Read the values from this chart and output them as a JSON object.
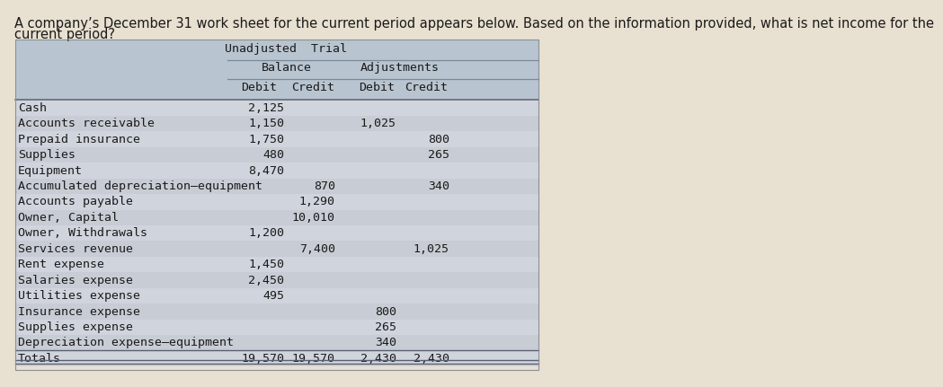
{
  "title_line1": "A company’s December 31 work sheet for the current period appears below. Based on the information provided, what is net income for the",
  "title_line2": "current period?",
  "rows": [
    {
      "label": "Cash",
      "utb_d": "2,125",
      "utb_c": "",
      "adj_d": "",
      "adj_c": ""
    },
    {
      "label": "Accounts receivable",
      "utb_d": "1,150",
      "utb_c": "",
      "adj_d": "1,025",
      "adj_c": ""
    },
    {
      "label": "Prepaid insurance",
      "utb_d": "1,750",
      "utb_c": "",
      "adj_d": "",
      "adj_c": "800"
    },
    {
      "label": "Supplies",
      "utb_d": "480",
      "utb_c": "",
      "adj_d": "",
      "adj_c": "265"
    },
    {
      "label": "Equipment",
      "utb_d": "8,470",
      "utb_c": "",
      "adj_d": "",
      "adj_c": ""
    },
    {
      "label": "Accumulated depreciation–equipment",
      "utb_d": "",
      "utb_c": "870",
      "adj_d": "",
      "adj_c": "340"
    },
    {
      "label": "Accounts payable",
      "utb_d": "",
      "utb_c": "1,290",
      "adj_d": "",
      "adj_c": ""
    },
    {
      "label": "Owner, Capital",
      "utb_d": "",
      "utb_c": "10,010",
      "adj_d": "",
      "adj_c": ""
    },
    {
      "label": "Owner, Withdrawals",
      "utb_d": "1,200",
      "utb_c": "",
      "adj_d": "",
      "adj_c": ""
    },
    {
      "label": "Services revenue",
      "utb_d": "",
      "utb_c": "7,400",
      "adj_d": "",
      "adj_c": "1,025"
    },
    {
      "label": "Rent expense",
      "utb_d": "1,450",
      "utb_c": "",
      "adj_d": "",
      "adj_c": ""
    },
    {
      "label": "Salaries expense",
      "utb_d": "2,450",
      "utb_c": "",
      "adj_d": "",
      "adj_c": ""
    },
    {
      "label": "Utilities expense",
      "utb_d": "495",
      "utb_c": "",
      "adj_d": "",
      "adj_c": ""
    },
    {
      "label": "Insurance expense",
      "utb_d": "",
      "utb_c": "",
      "adj_d": "800",
      "adj_c": ""
    },
    {
      "label": "Supplies expense",
      "utb_d": "",
      "utb_c": "",
      "adj_d": "265",
      "adj_c": ""
    },
    {
      "label": "Depreciation expense–equipment",
      "utb_d": "",
      "utb_c": "",
      "adj_d": "340",
      "adj_c": ""
    },
    {
      "label": "Totals",
      "utb_d": "19,570",
      "utb_c": "19,570",
      "adj_d": "2,430",
      "adj_c": "2,430"
    }
  ],
  "page_bg": "#e8e0d0",
  "table_bg_light": "#ddd8cc",
  "header_bg": "#b8c4d0",
  "row_alt_bg": "#c8d0dc",
  "row_normal_bg": "#d8dce4",
  "totals_bg": "#c8ccd4",
  "text_color": "#1a1a1a",
  "header_text_color": "#1a1a1a",
  "title_fontsize": 10.5,
  "cell_fontsize": 9.5,
  "label_fontsize": 9.5
}
